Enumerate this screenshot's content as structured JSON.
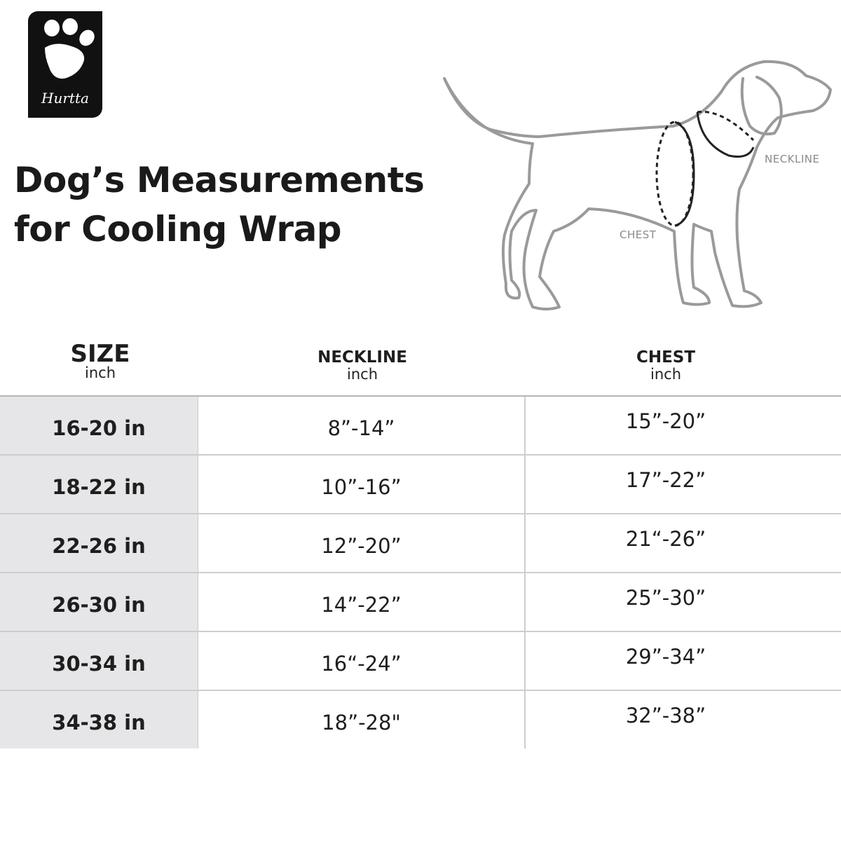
{
  "brand": {
    "logo_text": "Hurtta"
  },
  "title": {
    "line1": "Dog’s Measurements",
    "line2": "for Cooling Wrap"
  },
  "illustration": {
    "neckline_label": "NECKLINE",
    "chest_label": "CHEST"
  },
  "table": {
    "headers": [
      {
        "label": "SIZE",
        "unit": "inch"
      },
      {
        "label": "NECKLINE",
        "unit": "inch"
      },
      {
        "label": "CHEST",
        "unit": "inch"
      }
    ],
    "rows": [
      {
        "size": "16-20 in",
        "neckline": "8”-14”",
        "chest": "15”-20”"
      },
      {
        "size": "18-22 in",
        "neckline": "10”-16”",
        "chest": "17”-22”"
      },
      {
        "size": "22-26 in",
        "neckline": "12”-20”",
        "chest": "21“-26”"
      },
      {
        "size": "26-30 in",
        "neckline": "14”-22”",
        "chest": "25”-30”"
      },
      {
        "size": "30-34 in",
        "neckline": "16“-24”",
        "chest": "29”-34”"
      },
      {
        "size": "34-38 in",
        "neckline": "18”-28\"",
        "chest": "32”-38”"
      }
    ]
  },
  "colors": {
    "size_column_bg": "#e6e6e8",
    "grid": "#cdcdcd",
    "logo_bg": "#111111"
  }
}
